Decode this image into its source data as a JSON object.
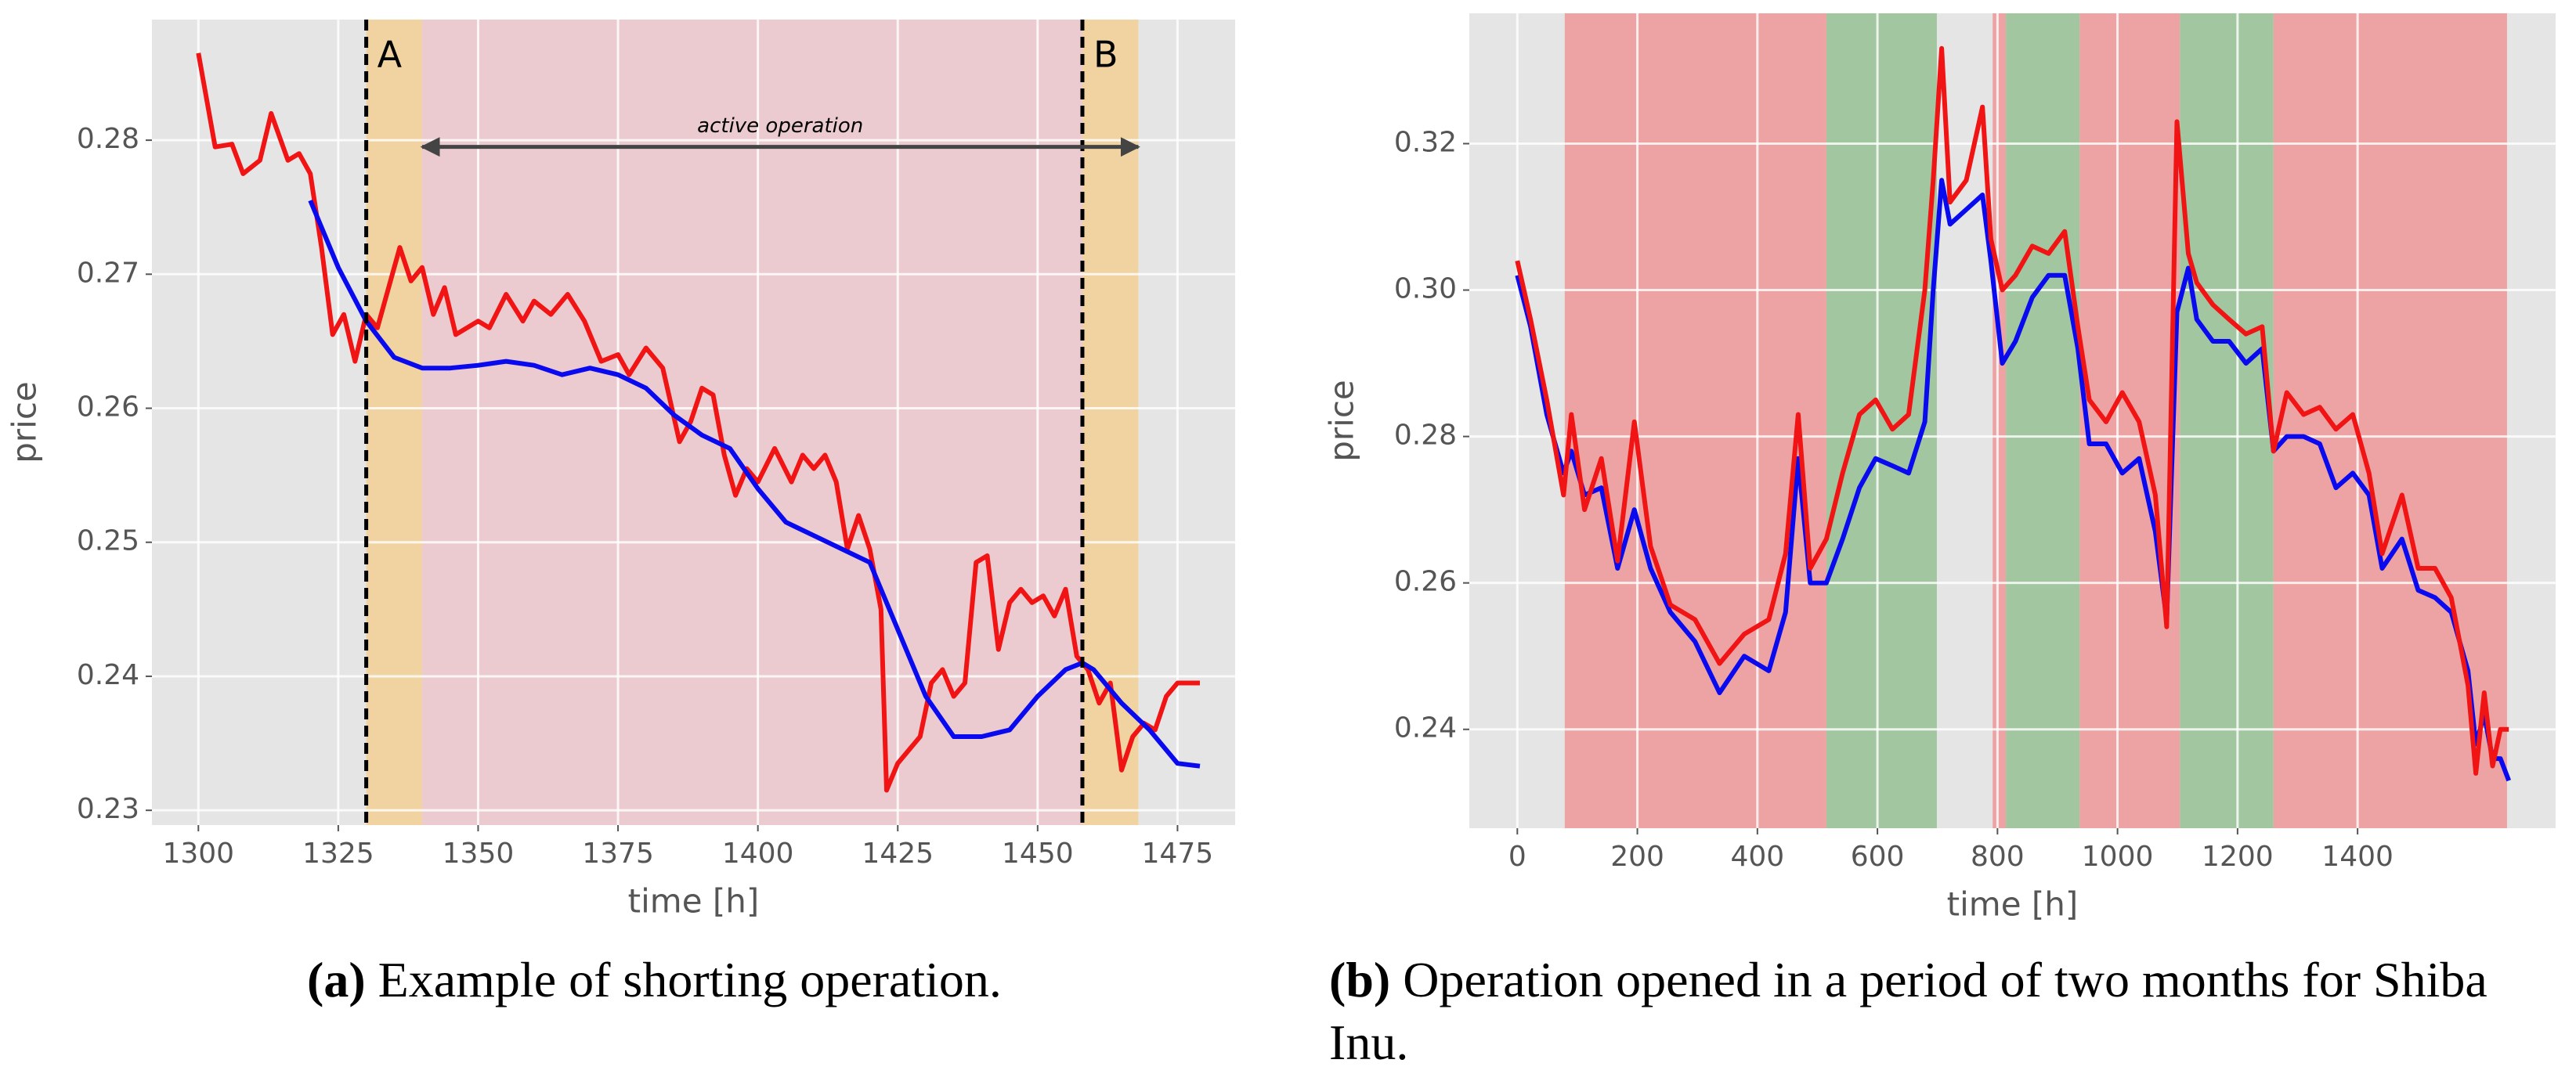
{
  "chart_data": [
    {
      "type": "line",
      "label": "(a)",
      "caption": "Example of shorting operation.",
      "xlabel": "time [h]",
      "ylabel": "price",
      "xlim": [
        1291.7,
        1485.3
      ],
      "ylim": [
        0.2289,
        0.289
      ],
      "xticks": [
        1300,
        1325,
        1350,
        1375,
        1400,
        1425,
        1450,
        1475
      ],
      "yticks": [
        0.23,
        0.24,
        0.25,
        0.26,
        0.27,
        0.28
      ],
      "grid": true,
      "spans": [
        {
          "x": [
            1330,
            1340
          ],
          "color": "#f0d3a0"
        },
        {
          "x": [
            1340,
            1458
          ],
          "color": "#ebcbcf"
        },
        {
          "x": [
            1458,
            1468
          ],
          "color": "#f0d3a0"
        }
      ],
      "vlines": [
        {
          "x": 1330,
          "label": "A"
        },
        {
          "x": 1458,
          "label": "B"
        }
      ],
      "arrow": {
        "x": [
          1340,
          1468
        ],
        "y": 0.2795,
        "label": "active operation"
      },
      "series": [
        {
          "color": "#f01414",
          "x": [
            1300,
            1303,
            1306,
            1308,
            1311,
            1313,
            1316,
            1318,
            1320,
            1322,
            1324,
            1326,
            1328,
            1330,
            1332,
            1334,
            1336,
            1338,
            1340,
            1342,
            1344,
            1346,
            1350,
            1352,
            1355,
            1358,
            1360,
            1363,
            1366,
            1369,
            1372,
            1375,
            1377,
            1380,
            1383,
            1386,
            1388,
            1390,
            1392,
            1394,
            1396,
            1398,
            1400,
            1403,
            1406,
            1408,
            1410,
            1412,
            1414,
            1416,
            1418,
            1420,
            1422,
            1423,
            1425,
            1427,
            1429,
            1431,
            1433,
            1435,
            1437,
            1439,
            1441,
            1443,
            1445,
            1447,
            1449,
            1451,
            1453,
            1455,
            1457,
            1459,
            1461,
            1463,
            1465,
            1467,
            1469,
            1471,
            1473,
            1475,
            1477,
            1479
          ],
          "values": [
            0.2865,
            0.2795,
            0.2797,
            0.2775,
            0.2785,
            0.282,
            0.2785,
            0.279,
            0.2775,
            0.272,
            0.2655,
            0.267,
            0.2635,
            0.267,
            0.266,
            0.269,
            0.272,
            0.2695,
            0.2705,
            0.267,
            0.269,
            0.2655,
            0.2665,
            0.266,
            0.2685,
            0.2665,
            0.268,
            0.267,
            0.2685,
            0.2665,
            0.2635,
            0.264,
            0.2625,
            0.2645,
            0.263,
            0.2575,
            0.259,
            0.2615,
            0.261,
            0.2565,
            0.2535,
            0.2555,
            0.2545,
            0.257,
            0.2545,
            0.2565,
            0.2555,
            0.2565,
            0.2545,
            0.2495,
            0.252,
            0.2495,
            0.245,
            0.2315,
            0.2335,
            0.2345,
            0.2355,
            0.2395,
            0.2405,
            0.2385,
            0.2395,
            0.2485,
            0.249,
            0.242,
            0.2455,
            0.2465,
            0.2455,
            0.246,
            0.2445,
            0.2465,
            0.2415,
            0.2405,
            0.238,
            0.2395,
            0.233,
            0.2355,
            0.2365,
            0.236,
            0.2385,
            0.2395,
            0.2395,
            0.2395
          ]
        },
        {
          "color": "#0a0aee",
          "x": [
            1320,
            1325,
            1330,
            1335,
            1340,
            1345,
            1350,
            1355,
            1360,
            1365,
            1370,
            1375,
            1380,
            1385,
            1390,
            1395,
            1400,
            1405,
            1410,
            1415,
            1420,
            1425,
            1430,
            1435,
            1440,
            1445,
            1450,
            1455,
            1458,
            1460,
            1465,
            1470,
            1475,
            1479
          ],
          "values": [
            0.2755,
            0.2705,
            0.2665,
            0.2638,
            0.263,
            0.263,
            0.2632,
            0.2635,
            0.2632,
            0.2625,
            0.263,
            0.2625,
            0.2615,
            0.2595,
            0.258,
            0.257,
            0.254,
            0.2515,
            0.2505,
            0.2495,
            0.2485,
            0.2435,
            0.2385,
            0.2355,
            0.2355,
            0.236,
            0.2385,
            0.2405,
            0.241,
            0.2405,
            0.238,
            0.236,
            0.2335,
            0.2333
          ]
        }
      ]
    },
    {
      "type": "line",
      "label": "(b)",
      "caption": "Operation opened in a period of two months for Shiba Inu.",
      "xlabel": "time [h]",
      "ylabel": "price",
      "xlim": [
        -80,
        1730
      ],
      "ylim": [
        0.2265,
        0.3378
      ],
      "xticks": [
        0,
        200,
        400,
        600,
        800,
        1000,
        1200,
        1400
      ],
      "yticks": [
        0.24,
        0.26,
        0.28,
        {
          "value": 0.3,
          "label": "0.30"
        },
        0.32
      ],
      "grid": true,
      "spans": [
        {
          "x": [
            79,
            515
          ],
          "color": "#eda3a3"
        },
        {
          "x": [
            515,
            699
          ],
          "color": "#a2c6a0"
        },
        {
          "x": [
            792,
            814
          ],
          "color": "#eda3a3"
        },
        {
          "x": [
            814,
            937
          ],
          "color": "#a2c6a0"
        },
        {
          "x": [
            937,
            1104
          ],
          "color": "#eda3a3"
        },
        {
          "x": [
            1104,
            1260
          ],
          "color": "#a2c6a0"
        },
        {
          "x": [
            1260,
            1649
          ],
          "color": "#eda3a3"
        }
      ],
      "x": [
        0,
        22,
        49,
        77,
        90,
        112,
        140,
        167,
        195,
        222,
        255,
        296,
        337,
        378,
        419,
        447,
        468,
        488,
        515,
        542,
        570,
        597,
        625,
        652,
        679,
        693,
        707,
        721,
        748,
        775,
        789,
        808,
        830,
        858,
        885,
        912,
        934,
        953,
        981,
        1008,
        1036,
        1063,
        1082,
        1099,
        1118,
        1132,
        1159,
        1186,
        1214,
        1241,
        1260,
        1282,
        1310,
        1337,
        1364,
        1392,
        1419,
        1441,
        1474,
        1501,
        1529,
        1556,
        1584,
        1597,
        1611,
        1625,
        1638,
        1652
      ],
      "series": [
        {
          "color": "#0a0aee",
          "values": [
            0.302,
            0.295,
            0.283,
            0.275,
            0.278,
            0.272,
            0.273,
            0.262,
            0.27,
            0.262,
            0.256,
            0.252,
            0.245,
            0.25,
            0.248,
            0.256,
            0.277,
            0.26,
            0.26,
            0.266,
            0.273,
            0.277,
            0.276,
            0.275,
            0.282,
            0.3,
            0.315,
            0.309,
            0.311,
            0.313,
            0.304,
            0.29,
            0.293,
            0.299,
            0.302,
            0.302,
            0.292,
            0.279,
            0.279,
            0.275,
            0.277,
            0.267,
            0.255,
            0.297,
            0.303,
            0.296,
            0.293,
            0.293,
            0.29,
            0.292,
            0.278,
            0.28,
            0.28,
            0.279,
            0.273,
            0.275,
            0.272,
            0.262,
            0.266,
            0.259,
            0.258,
            0.256,
            0.248,
            0.238,
            0.242,
            0.236,
            0.236,
            0.233
          ]
        },
        {
          "color": "#f01414",
          "values": [
            0.304,
            0.296,
            0.285,
            0.272,
            0.283,
            0.27,
            0.277,
            0.263,
            0.282,
            0.265,
            0.257,
            0.255,
            0.249,
            0.253,
            0.255,
            0.264,
            0.283,
            0.262,
            0.266,
            0.275,
            0.283,
            0.285,
            0.281,
            0.283,
            0.3,
            0.315,
            0.333,
            0.312,
            0.315,
            0.325,
            0.307,
            0.3,
            0.302,
            0.306,
            0.305,
            0.308,
            0.295,
            0.285,
            0.282,
            0.286,
            0.282,
            0.272,
            0.254,
            0.323,
            0.305,
            0.301,
            0.298,
            0.296,
            0.294,
            0.295,
            0.278,
            0.286,
            0.283,
            0.284,
            0.281,
            0.283,
            0.275,
            0.264,
            0.272,
            0.262,
            0.262,
            0.258,
            0.246,
            0.234,
            0.245,
            0.235,
            0.24,
            0.24
          ]
        }
      ]
    }
  ]
}
